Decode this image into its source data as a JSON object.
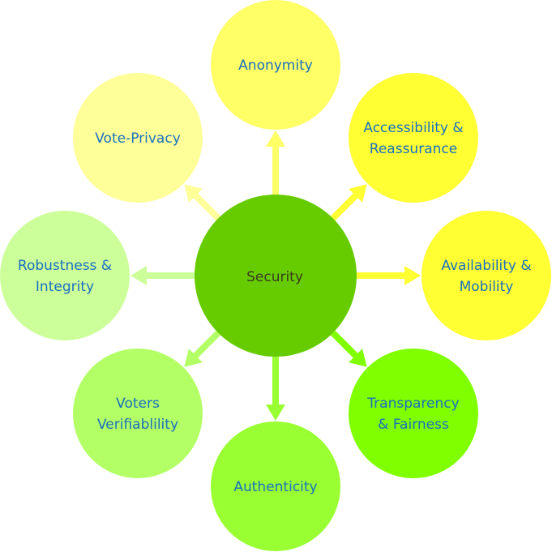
{
  "center": {
    "label": "Security",
    "color": "#66cc00"
  },
  "satellites": [
    {
      "key": "anonymity",
      "lines": [
        "Anonymity"
      ],
      "fill": "#ffff66",
      "arrow": "#ffff66"
    },
    {
      "key": "accessibility",
      "lines": [
        "Accessibility &",
        "Reassurance"
      ],
      "fill": "#ffff33",
      "arrow": "#ffff33"
    },
    {
      "key": "availability",
      "lines": [
        "Availability &",
        "Mobility"
      ],
      "fill": "#ffff33",
      "arrow": "#ffff33"
    },
    {
      "key": "transparency",
      "lines": [
        "Transparency",
        "& Fairness"
      ],
      "fill": "#80ff00",
      "arrow": "#80ff00"
    },
    {
      "key": "authenticity",
      "lines": [
        "Authenticity"
      ],
      "fill": "#99ff33",
      "arrow": "#99ff33"
    },
    {
      "key": "verifiability",
      "lines": [
        "Voters",
        "Verifiablility"
      ],
      "fill": "#b3ff66",
      "arrow": "#b3ff66"
    },
    {
      "key": "robustness",
      "lines": [
        "Robustness &",
        "Integrity"
      ],
      "fill": "#ccff99",
      "arrow": "#ccff99"
    },
    {
      "key": "vote-privacy",
      "lines": [
        "Vote-Privacy"
      ],
      "fill": "#ffff99",
      "arrow": "#ffff99"
    }
  ]
}
